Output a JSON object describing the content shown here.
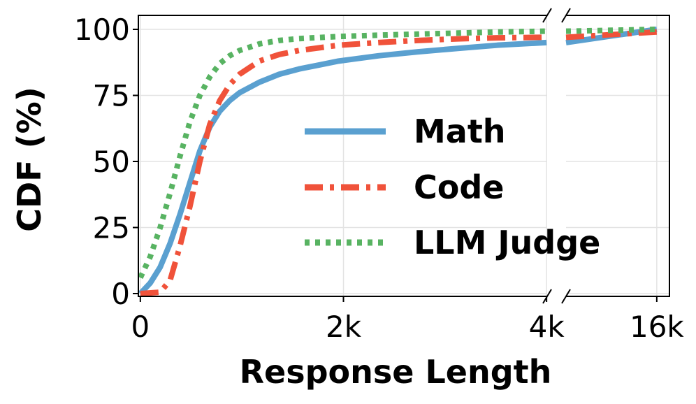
{
  "chart_data": {
    "type": "line",
    "xlabel": "Response Length",
    "ylabel": "CDF (%)",
    "ylim": [
      0,
      100
    ],
    "yticks": [
      0,
      25,
      50,
      75,
      100
    ],
    "ytick_labels": [
      "0",
      "25",
      "50",
      "75",
      "100"
    ],
    "x_segments": [
      {
        "range": [
          0,
          4096
        ],
        "ticks": [
          0,
          2048,
          4096
        ],
        "tick_labels": [
          "0",
          "2k",
          "4k"
        ]
      },
      {
        "range": [
          4096,
          16384
        ],
        "ticks": [
          16384
        ],
        "tick_labels": [
          "16k"
        ]
      }
    ],
    "axis_break": true,
    "grid": true,
    "legend_position": "center-right",
    "series": [
      {
        "name": "Math",
        "color": "#5aa0d0",
        "style": "solid",
        "x": [
          0,
          100,
          200,
          300,
          400,
          500,
          600,
          700,
          800,
          900,
          1000,
          1200,
          1400,
          1600,
          1800,
          2000,
          2400,
          2800,
          3200,
          3600,
          4096,
          16384
        ],
        "y": [
          0,
          4,
          10,
          19,
          30,
          42,
          54,
          63,
          69,
          73,
          76,
          80,
          83,
          85,
          86.5,
          88,
          90,
          91.5,
          92.8,
          94,
          95,
          100
        ]
      },
      {
        "name": "Code",
        "color": "#f0523a",
        "style": "dashdot",
        "x": [
          0,
          200,
          300,
          400,
          500,
          600,
          700,
          800,
          900,
          1000,
          1200,
          1400,
          1600,
          2000,
          2400,
          2800,
          3200,
          3600,
          4096,
          16384
        ],
        "y": [
          0,
          0.5,
          5,
          18,
          33,
          50,
          64,
          73,
          79,
          83,
          88,
          90.5,
          92,
          94,
          95,
          95.8,
          96.4,
          96.8,
          97,
          99
        ]
      },
      {
        "name": "LLM Judge",
        "color": "#58b362",
        "style": "dotted",
        "x": [
          0,
          100,
          200,
          300,
          400,
          500,
          600,
          700,
          800,
          900,
          1000,
          1200,
          1400,
          1600,
          2000,
          2400,
          2800,
          3200,
          3600,
          4096,
          16384
        ],
        "y": [
          6,
          14,
          25,
          38,
          52,
          65,
          75,
          82,
          87,
          90,
          92,
          94.5,
          95.8,
          96.5,
          97.3,
          97.8,
          98.2,
          98.6,
          99,
          99.3,
          100
        ]
      }
    ]
  }
}
